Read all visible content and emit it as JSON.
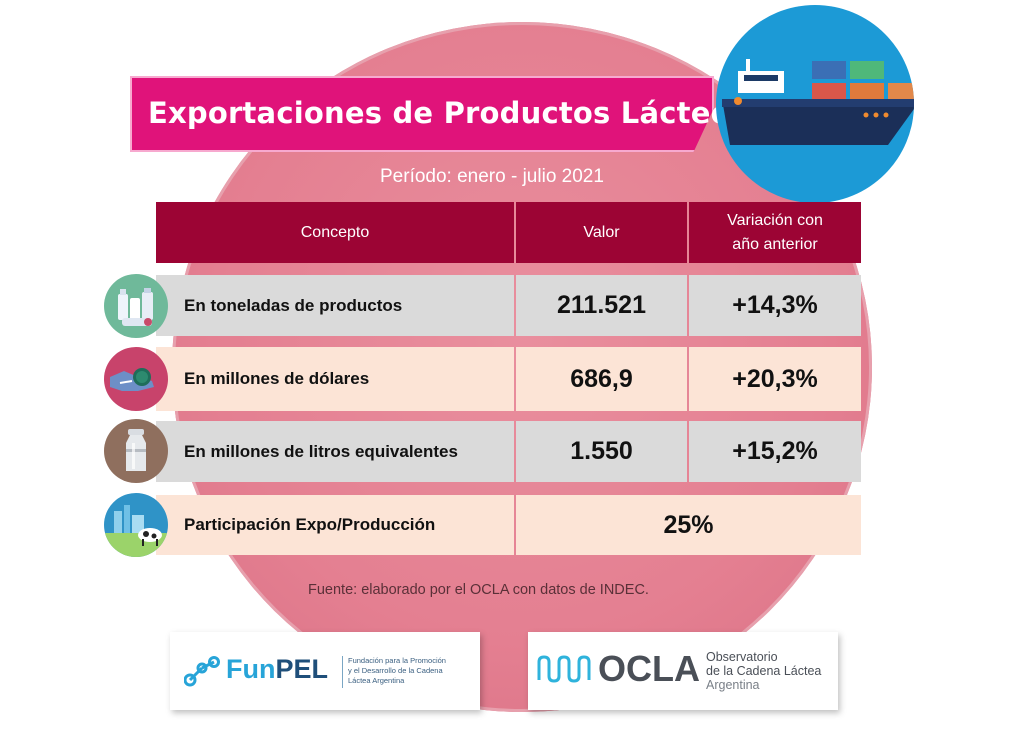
{
  "title": "Exportaciones de Productos Lácteos",
  "period": "Período: enero - julio 2021",
  "table": {
    "headers": [
      "Concepto",
      "Valor",
      "Variación con año anterior"
    ],
    "header_variacion_line1": "Variación con",
    "header_variacion_line2": "año anterior",
    "rows": [
      {
        "concepto": "En toneladas de productos",
        "valor": "211.521",
        "variacion": "+14,3%",
        "icon": "dairy-products-icon"
      },
      {
        "concepto": "En millones de dólares",
        "valor": "686,9",
        "variacion": "+20,3%",
        "icon": "money-hand-icon"
      },
      {
        "concepto": "En millones de litros equivalentes",
        "valor": "1.550",
        "variacion": "+15,2%",
        "icon": "milk-can-icon"
      },
      {
        "concepto": "Participación Expo/Producción",
        "valor": "25%",
        "icon": "dairy-farm-icon"
      }
    ]
  },
  "source": "Fuente: elaborado por el OCLA con datos de INDEC.",
  "logos": {
    "funpel": {
      "name": "FunPEL",
      "name_prefix": "Fun",
      "name_suffix": "PEL",
      "tagline_1": "Fundación para la Promoción",
      "tagline_2": "y el Desarrollo de la Cadena",
      "tagline_3": "Láctea Argentina"
    },
    "ocla": {
      "name": "OCLA",
      "line_1": "Observatorio",
      "line_2": "de la Cadena Láctea",
      "line_3": "Argentina"
    }
  },
  "colors": {
    "title_banner": "#e0137a",
    "header": "#9c0434",
    "row_gray": "#dadada",
    "row_pink": "#fce4d6",
    "background_circle": "#e47f91",
    "ship_circle": "#1c9ad6"
  }
}
